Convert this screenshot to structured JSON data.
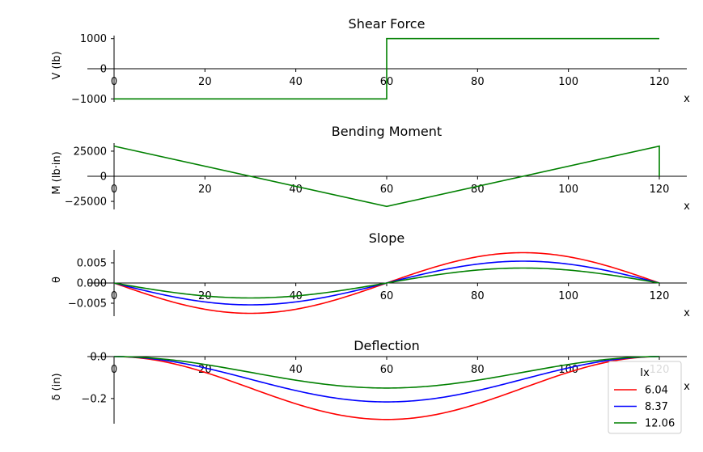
{
  "chart_data": [
    {
      "type": "line",
      "title": "Shear Force",
      "ylabel": "V  (lb)",
      "xlabel": "x",
      "xlim": [
        0,
        125
      ],
      "ylim": [
        -1100,
        1100
      ],
      "xticks": [
        0,
        20,
        40,
        60,
        80,
        100,
        120
      ],
      "yticks": [
        -1000,
        0,
        1000
      ],
      "ytick_labels": [
        "−1000",
        "0",
        "1000"
      ],
      "series": [
        {
          "color": "#008000",
          "x": [
            0,
            60,
            60,
            120
          ],
          "y": [
            -1000,
            -1000,
            1000,
            1000
          ]
        }
      ]
    },
    {
      "type": "line",
      "title": "Bending Moment",
      "ylabel": "M  (lb·in)",
      "xlabel": "x",
      "xlim": [
        0,
        125
      ],
      "ylim": [
        -33000,
        33000
      ],
      "xticks": [
        0,
        20,
        40,
        60,
        80,
        100,
        120
      ],
      "yticks": [
        -25000,
        0,
        25000
      ],
      "ytick_labels": [
        "−25000",
        "0",
        "25000"
      ],
      "series": [
        {
          "color": "#008000",
          "x": [
            0,
            60,
            120,
            120
          ],
          "y": [
            30000,
            -30000,
            30000,
            0
          ]
        }
      ]
    },
    {
      "type": "line",
      "title": "Slope",
      "ylabel": "θ",
      "xlabel": "x",
      "xlim": [
        0,
        125
      ],
      "ylim": [
        -0.0082,
        0.0082
      ],
      "xticks": [
        0,
        20,
        40,
        60,
        80,
        100,
        120
      ],
      "yticks": [
        -0.005,
        0.0,
        0.005
      ],
      "ytick_labels": [
        "−0.005",
        "0.000",
        "0.005"
      ],
      "series": [
        {
          "name": "6.04",
          "color": "#ff0000",
          "amplitude": 0.0075
        },
        {
          "name": "8.37",
          "color": "#0000ff",
          "amplitude": 0.0054
        },
        {
          "name": "12.06",
          "color": "#008000",
          "amplitude": 0.0037
        }
      ]
    },
    {
      "type": "line",
      "title": "Deflection",
      "ylabel": "δ  (in)",
      "xlabel": "x",
      "xlim": [
        0,
        125
      ],
      "ylim": [
        -0.32,
        0.0
      ],
      "xticks": [
        0,
        20,
        40,
        60,
        80,
        100,
        120
      ],
      "yticks": [
        -0.2,
        0.0
      ],
      "ytick_labels": [
        "−0.2",
        "0.0"
      ],
      "series": [
        {
          "name": "6.04",
          "color": "#ff0000",
          "amplitude": 0.3
        },
        {
          "name": "8.37",
          "color": "#0000ff",
          "amplitude": 0.216
        },
        {
          "name": "12.06",
          "color": "#008000",
          "amplitude": 0.15
        }
      ],
      "legend": {
        "title": "Ix",
        "placement": "lower-right",
        "entries": [
          {
            "label": "6.04",
            "color": "#ff0000"
          },
          {
            "label": "8.37",
            "color": "#0000ff"
          },
          {
            "label": "12.06",
            "color": "#008000"
          }
        ]
      }
    }
  ]
}
